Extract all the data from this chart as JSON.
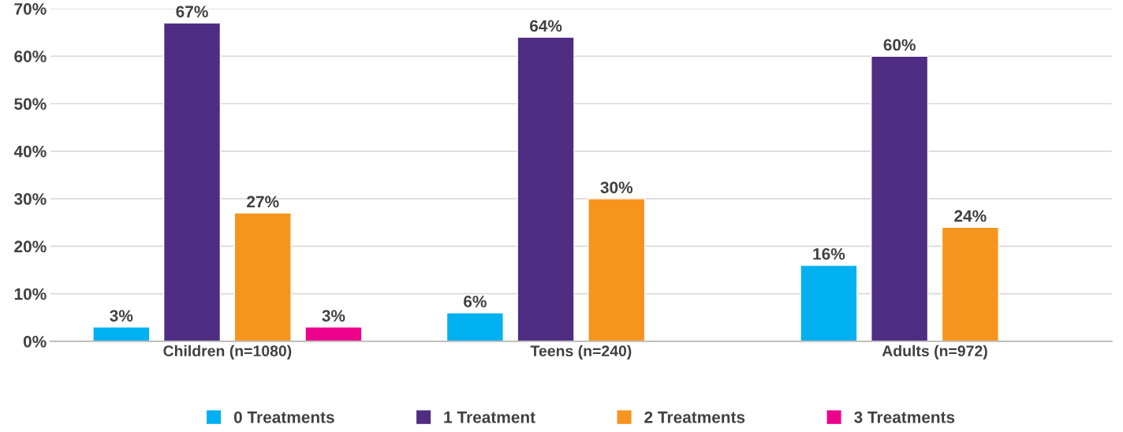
{
  "chart_data": {
    "type": "bar",
    "categories": [
      "Children (n=1080)",
      "Teens (n=240)",
      "Adults (n=972)"
    ],
    "series": [
      {
        "name": "0 Treatments",
        "color": "#00b0f0",
        "values": [
          3,
          6,
          16
        ],
        "value_labels": [
          "3%",
          "6%",
          "16%"
        ]
      },
      {
        "name": "1 Treatment",
        "color": "#4f2d83",
        "values": [
          67,
          64,
          60
        ],
        "value_labels": [
          "67%",
          "64%",
          "60%"
        ]
      },
      {
        "name": "2 Treatments",
        "color": "#f7941d",
        "values": [
          27,
          30,
          24
        ],
        "value_labels": [
          "27%",
          "30%",
          "24%"
        ]
      },
      {
        "name": "3 Treatments",
        "color": "#ec008c",
        "values": [
          3,
          null,
          null
        ],
        "value_labels": [
          "3%",
          null,
          null
        ]
      }
    ],
    "ylim": [
      0,
      70
    ],
    "yticks": [
      {
        "value": 0,
        "label": "0%"
      },
      {
        "value": 10,
        "label": "10%"
      },
      {
        "value": 20,
        "label": "20%"
      },
      {
        "value": 30,
        "label": "30%"
      },
      {
        "value": 40,
        "label": "40%"
      },
      {
        "value": 50,
        "label": "50%"
      },
      {
        "value": 60,
        "label": "60%"
      },
      {
        "value": 70,
        "label": "70%"
      }
    ],
    "grid": "y",
    "legend": "bottom"
  }
}
